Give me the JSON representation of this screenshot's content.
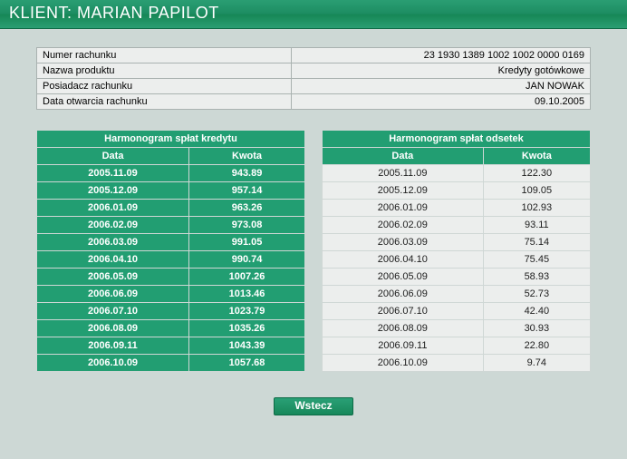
{
  "colors": {
    "page_bg": "#cdd8d5",
    "brand_green": "#229e72",
    "brand_green_dark": "#168756",
    "cell_bg": "#eceeed",
    "border": "#a9b2b0",
    "white": "#ffffff",
    "text_dark": "#1d1d1d"
  },
  "header": {
    "title": "KLIENT: MARIAN PAPILOT"
  },
  "info": {
    "rows": [
      {
        "label": "Numer rachunku",
        "value": "23 1930 1389 1002 1002 0000 0169"
      },
      {
        "label": "Nazwa produktu",
        "value": "Kredyty gotówkowe"
      },
      {
        "label": "Posiadacz rachunku",
        "value": "JAN NOWAK"
      },
      {
        "label": "Data otwarcia rachunku",
        "value": "09.10.2005"
      }
    ]
  },
  "schedule_left": {
    "title": "Harmonogram spłat kredytu",
    "col_date": "Data",
    "col_amount": "Kwota",
    "rows": [
      {
        "date": "2005.11.09",
        "amount": "943.89"
      },
      {
        "date": "2005.12.09",
        "amount": "957.14"
      },
      {
        "date": "2006.01.09",
        "amount": "963.26"
      },
      {
        "date": "2006.02.09",
        "amount": "973.08"
      },
      {
        "date": "2006.03.09",
        "amount": "991.05"
      },
      {
        "date": "2006.04.10",
        "amount": "990.74"
      },
      {
        "date": "2006.05.09",
        "amount": "1007.26"
      },
      {
        "date": "2006.06.09",
        "amount": "1013.46"
      },
      {
        "date": "2006.07.10",
        "amount": "1023.79"
      },
      {
        "date": "2006.08.09",
        "amount": "1035.26"
      },
      {
        "date": "2006.09.11",
        "amount": "1043.39"
      },
      {
        "date": "2006.10.09",
        "amount": "1057.68"
      }
    ]
  },
  "schedule_right": {
    "title": "Harmonogram spłat odsetek",
    "col_date": "Data",
    "col_amount": "Kwota",
    "rows": [
      {
        "date": "2005.11.09",
        "amount": "122.30"
      },
      {
        "date": "2005.12.09",
        "amount": "109.05"
      },
      {
        "date": "2006.01.09",
        "amount": "102.93"
      },
      {
        "date": "2006.02.09",
        "amount": "93.11"
      },
      {
        "date": "2006.03.09",
        "amount": "75.14"
      },
      {
        "date": "2006.04.10",
        "amount": "75.45"
      },
      {
        "date": "2006.05.09",
        "amount": "58.93"
      },
      {
        "date": "2006.06.09",
        "amount": "52.73"
      },
      {
        "date": "2006.07.10",
        "amount": "42.40"
      },
      {
        "date": "2006.08.09",
        "amount": "30.93"
      },
      {
        "date": "2006.09.11",
        "amount": "22.80"
      },
      {
        "date": "2006.10.09",
        "amount": "9.74"
      }
    ]
  },
  "buttons": {
    "back": "Wstecz"
  }
}
